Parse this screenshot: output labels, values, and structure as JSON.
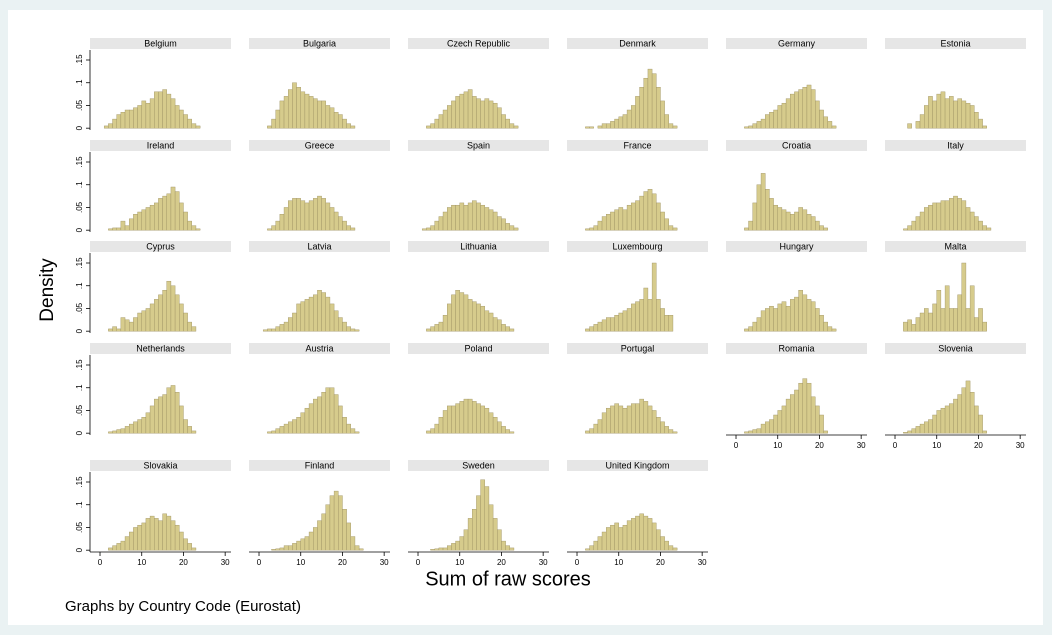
{
  "chart_data": {
    "type": "histogram",
    "ylabel": "Density",
    "xlabel": "Sum of raw scores",
    "note": "Graphs by Country Code (Eurostat)",
    "xlim": [
      -2.4,
      31.4
    ],
    "ylim": [
      -0.004,
      0.172
    ],
    "xticks": [
      0,
      10,
      20,
      30
    ],
    "yticks": [
      {
        "value": 0,
        "label": "0"
      },
      {
        "value": 0.05,
        "label": ".05"
      },
      {
        "value": 0.1,
        "label": ".1"
      },
      {
        "value": 0.15,
        "label": ".15"
      }
    ],
    "color": "#d6cb8c",
    "edgecolor": "#9c9060",
    "bins": [
      0,
      1,
      2,
      3,
      4,
      5,
      6,
      7,
      8,
      9,
      10,
      11,
      12,
      13,
      14,
      15,
      16,
      17,
      18,
      19,
      20,
      21,
      22,
      23,
      24,
      25,
      26
    ],
    "panels": [
      {
        "name": "Belgium",
        "values": [
          0,
          0.005,
          0.01,
          0.02,
          0.03,
          0.035,
          0.04,
          0.04,
          0.045,
          0.05,
          0.06,
          0.055,
          0.065,
          0.08,
          0.08,
          0.085,
          0.075,
          0.065,
          0.05,
          0.04,
          0.03,
          0.02,
          0.01,
          0.005,
          0,
          0
        ]
      },
      {
        "name": "Bulgaria",
        "values": [
          0,
          0,
          0.005,
          0.02,
          0.04,
          0.06,
          0.07,
          0.085,
          0.1,
          0.09,
          0.08,
          0.075,
          0.07,
          0.065,
          0.06,
          0.06,
          0.05,
          0.045,
          0.035,
          0.03,
          0.02,
          0.01,
          0.005,
          0,
          0,
          0
        ]
      },
      {
        "name": "Czech Republic",
        "values": [
          0,
          0,
          0.005,
          0.01,
          0.02,
          0.03,
          0.04,
          0.05,
          0.06,
          0.07,
          0.075,
          0.08,
          0.085,
          0.07,
          0.065,
          0.06,
          0.065,
          0.06,
          0.055,
          0.045,
          0.03,
          0.02,
          0.01,
          0.005,
          0,
          0
        ]
      },
      {
        "name": "Denmark",
        "values": [
          0,
          0,
          0.003,
          0.003,
          0,
          0.005,
          0.01,
          0.01,
          0.015,
          0.02,
          0.025,
          0.03,
          0.04,
          0.05,
          0.07,
          0.09,
          0.11,
          0.13,
          0.12,
          0.09,
          0.06,
          0.03,
          0.01,
          0.005,
          0,
          0
        ]
      },
      {
        "name": "Germany",
        "values": [
          0,
          0,
          0.003,
          0.005,
          0.01,
          0.015,
          0.02,
          0.03,
          0.035,
          0.04,
          0.05,
          0.055,
          0.065,
          0.075,
          0.08,
          0.085,
          0.09,
          0.095,
          0.085,
          0.06,
          0.04,
          0.025,
          0.015,
          0.005,
          0,
          0
        ]
      },
      {
        "name": "Estonia",
        "values": [
          0,
          0,
          0,
          0.01,
          0,
          0.015,
          0.03,
          0.05,
          0.07,
          0.06,
          0.075,
          0.08,
          0.065,
          0.07,
          0.06,
          0.065,
          0.06,
          0.055,
          0.05,
          0.035,
          0.02,
          0.005,
          0,
          0,
          0,
          0
        ]
      },
      {
        "name": "Ireland",
        "values": [
          0,
          0,
          0.003,
          0.005,
          0.005,
          0.02,
          0.01,
          0.025,
          0.035,
          0.04,
          0.045,
          0.05,
          0.055,
          0.06,
          0.07,
          0.075,
          0.08,
          0.095,
          0.085,
          0.06,
          0.04,
          0.02,
          0.01,
          0.003,
          0,
          0
        ]
      },
      {
        "name": "Greece",
        "values": [
          0,
          0,
          0.003,
          0.01,
          0.02,
          0.035,
          0.05,
          0.065,
          0.07,
          0.07,
          0.065,
          0.06,
          0.065,
          0.07,
          0.075,
          0.07,
          0.06,
          0.05,
          0.04,
          0.03,
          0.02,
          0.01,
          0.005,
          0,
          0,
          0
        ]
      },
      {
        "name": "Spain",
        "values": [
          0,
          0.003,
          0.005,
          0.01,
          0.02,
          0.03,
          0.04,
          0.05,
          0.055,
          0.055,
          0.06,
          0.055,
          0.06,
          0.065,
          0.06,
          0.055,
          0.05,
          0.045,
          0.04,
          0.03,
          0.025,
          0.015,
          0.01,
          0.005,
          0,
          0
        ]
      },
      {
        "name": "France",
        "values": [
          0,
          0,
          0.003,
          0.005,
          0.01,
          0.02,
          0.03,
          0.035,
          0.04,
          0.045,
          0.05,
          0.045,
          0.055,
          0.06,
          0.065,
          0.075,
          0.085,
          0.09,
          0.08,
          0.06,
          0.04,
          0.025,
          0.01,
          0.005,
          0,
          0
        ]
      },
      {
        "name": "Croatia",
        "values": [
          0,
          0,
          0.005,
          0.02,
          0.06,
          0.1,
          0.125,
          0.09,
          0.07,
          0.055,
          0.05,
          0.045,
          0.04,
          0.035,
          0.04,
          0.05,
          0.045,
          0.035,
          0.03,
          0.02,
          0.01,
          0.005,
          0,
          0,
          0,
          0
        ]
      },
      {
        "name": "Italy",
        "values": [
          0,
          0,
          0.003,
          0.01,
          0.02,
          0.03,
          0.04,
          0.05,
          0.055,
          0.06,
          0.06,
          0.065,
          0.065,
          0.07,
          0.075,
          0.07,
          0.065,
          0.05,
          0.04,
          0.03,
          0.02,
          0.01,
          0.005,
          0,
          0,
          0
        ]
      },
      {
        "name": "Cyprus",
        "values": [
          0,
          0,
          0.005,
          0.01,
          0.005,
          0.03,
          0.025,
          0.02,
          0.03,
          0.04,
          0.045,
          0.05,
          0.06,
          0.07,
          0.08,
          0.09,
          0.11,
          0.1,
          0.08,
          0.06,
          0.04,
          0.02,
          0.01,
          0,
          0,
          0
        ]
      },
      {
        "name": "Latvia",
        "values": [
          0,
          0.003,
          0.005,
          0.005,
          0.01,
          0.015,
          0.02,
          0.03,
          0.04,
          0.06,
          0.065,
          0.07,
          0.075,
          0.08,
          0.09,
          0.085,
          0.075,
          0.06,
          0.045,
          0.03,
          0.02,
          0.01,
          0.005,
          0.003,
          0,
          0
        ]
      },
      {
        "name": "Lithuania",
        "values": [
          0,
          0,
          0.005,
          0.01,
          0.015,
          0.02,
          0.035,
          0.06,
          0.08,
          0.09,
          0.085,
          0.08,
          0.07,
          0.065,
          0.06,
          0.055,
          0.045,
          0.04,
          0.03,
          0.025,
          0.015,
          0.01,
          0.005,
          0,
          0,
          0
        ]
      },
      {
        "name": "Luxembourg",
        "values": [
          0,
          0,
          0.005,
          0.01,
          0.015,
          0.02,
          0.025,
          0.03,
          0.03,
          0.035,
          0.04,
          0.045,
          0.05,
          0.06,
          0.065,
          0.07,
          0.095,
          0.07,
          0.15,
          0.07,
          0.05,
          0.035,
          0.035,
          0,
          0,
          0
        ]
      },
      {
        "name": "Hungary",
        "values": [
          0,
          0,
          0.005,
          0.01,
          0.02,
          0.03,
          0.045,
          0.05,
          0.055,
          0.05,
          0.06,
          0.065,
          0.055,
          0.07,
          0.075,
          0.09,
          0.08,
          0.07,
          0.065,
          0.05,
          0.035,
          0.02,
          0.01,
          0.005,
          0,
          0
        ]
      },
      {
        "name": "Malta",
        "values": [
          0,
          0,
          0.02,
          0.025,
          0.015,
          0.03,
          0.04,
          0.05,
          0.04,
          0.06,
          0.09,
          0.05,
          0.1,
          0.05,
          0.05,
          0.08,
          0.15,
          0.05,
          0.1,
          0.03,
          0.05,
          0.02,
          0,
          0,
          0,
          0
        ]
      },
      {
        "name": "Netherlands",
        "values": [
          0,
          0,
          0.003,
          0.005,
          0.008,
          0.01,
          0.015,
          0.02,
          0.025,
          0.03,
          0.035,
          0.045,
          0.06,
          0.075,
          0.08,
          0.085,
          0.1,
          0.105,
          0.09,
          0.06,
          0.03,
          0.015,
          0.005,
          0,
          0,
          0
        ]
      },
      {
        "name": "Austria",
        "values": [
          0,
          0,
          0.003,
          0.005,
          0.01,
          0.015,
          0.02,
          0.025,
          0.03,
          0.035,
          0.045,
          0.055,
          0.065,
          0.075,
          0.08,
          0.09,
          0.1,
          0.1,
          0.085,
          0.06,
          0.035,
          0.02,
          0.01,
          0.003,
          0,
          0
        ]
      },
      {
        "name": "Poland",
        "values": [
          0,
          0,
          0.005,
          0.01,
          0.02,
          0.035,
          0.05,
          0.06,
          0.06,
          0.065,
          0.07,
          0.075,
          0.075,
          0.07,
          0.065,
          0.06,
          0.055,
          0.045,
          0.035,
          0.025,
          0.015,
          0.008,
          0.003,
          0,
          0,
          0
        ]
      },
      {
        "name": "Portugal",
        "values": [
          0,
          0,
          0.005,
          0.01,
          0.02,
          0.03,
          0.045,
          0.055,
          0.06,
          0.065,
          0.06,
          0.055,
          0.06,
          0.065,
          0.065,
          0.075,
          0.07,
          0.06,
          0.05,
          0.035,
          0.025,
          0.015,
          0.008,
          0.003,
          0,
          0
        ]
      },
      {
        "name": "Romania",
        "values": [
          0,
          0,
          0.003,
          0.005,
          0.008,
          0.01,
          0.02,
          0.025,
          0.03,
          0.04,
          0.05,
          0.06,
          0.075,
          0.085,
          0.095,
          0.11,
          0.12,
          0.11,
          0.08,
          0.06,
          0.04,
          0.005,
          0,
          0,
          0,
          0
        ]
      },
      {
        "name": "Slovenia",
        "values": [
          0,
          0,
          0.002,
          0.005,
          0.01,
          0.015,
          0.02,
          0.025,
          0.03,
          0.04,
          0.05,
          0.055,
          0.06,
          0.065,
          0.075,
          0.085,
          0.1,
          0.115,
          0.09,
          0.06,
          0.04,
          0.005,
          0,
          0,
          0,
          0
        ]
      },
      {
        "name": "Slovakia",
        "values": [
          0,
          0,
          0.005,
          0.01,
          0.015,
          0.02,
          0.03,
          0.04,
          0.05,
          0.055,
          0.06,
          0.07,
          0.075,
          0.07,
          0.065,
          0.08,
          0.075,
          0.065,
          0.055,
          0.04,
          0.025,
          0.015,
          0.005,
          0,
          0,
          0
        ]
      },
      {
        "name": "Finland",
        "values": [
          0,
          0,
          0,
          0.002,
          0.003,
          0.005,
          0.01,
          0.01,
          0.015,
          0.02,
          0.025,
          0.03,
          0.04,
          0.05,
          0.065,
          0.08,
          0.1,
          0.12,
          0.13,
          0.12,
          0.09,
          0.06,
          0.03,
          0.01,
          0.003,
          0
        ]
      },
      {
        "name": "Sweden",
        "values": [
          0,
          0,
          0,
          0.002,
          0.003,
          0.005,
          0.005,
          0.01,
          0.015,
          0.02,
          0.03,
          0.045,
          0.07,
          0.09,
          0.12,
          0.155,
          0.14,
          0.1,
          0.07,
          0.045,
          0.02,
          0.01,
          0.005,
          0,
          0,
          0
        ]
      },
      {
        "name": "United Kingdom",
        "values": [
          0,
          0,
          0.003,
          0.01,
          0.02,
          0.03,
          0.04,
          0.05,
          0.055,
          0.06,
          0.05,
          0.055,
          0.065,
          0.07,
          0.075,
          0.08,
          0.075,
          0.07,
          0.06,
          0.045,
          0.03,
          0.02,
          0.01,
          0.005,
          0,
          0
        ]
      }
    ]
  }
}
